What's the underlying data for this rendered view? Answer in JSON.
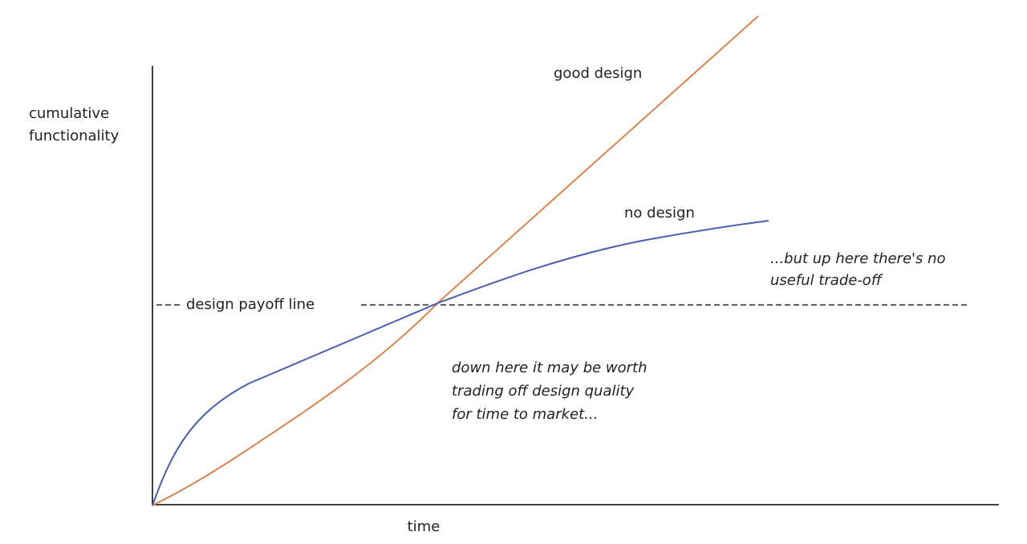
{
  "axes": {
    "y_label": [
      "cumulative",
      "functionality"
    ],
    "x_label": "time"
  },
  "curves": [
    {
      "label": "good design"
    },
    {
      "label": "no design"
    }
  ],
  "payoff_line": {
    "label": "design payoff line"
  },
  "annotations": [
    {
      "lines": [
        "down here it may be worth",
        "trading off design quality",
        "for time to market..."
      ]
    },
    {
      "lines": [
        "...but up here there's no",
        "useful trade-off"
      ]
    }
  ]
}
